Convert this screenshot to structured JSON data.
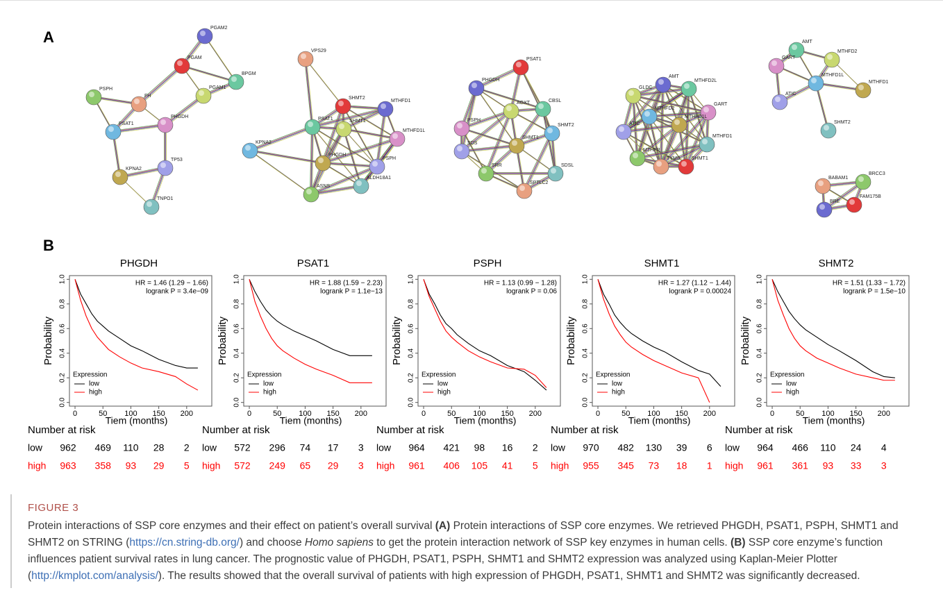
{
  "panel_a": {
    "label": "A",
    "networks": [
      {
        "nodes": [
          "PSPH",
          "FH",
          "PGAM",
          "PGAM2",
          "BPGM",
          "PGAM1",
          "PHGDH",
          "PSAT1",
          "KPNA2",
          "TP53",
          "TNPO1"
        ]
      },
      {
        "nodes": [
          "VPS29",
          "SHMT2",
          "MTHFD1",
          "PSAT1",
          "SHMT1",
          "MTHFD1L",
          "KPNA2",
          "PHGDH",
          "PSPH",
          "ALDH18A1",
          "ASNS"
        ]
      },
      {
        "nodes": [
          "PSAT1",
          "PHGDH",
          "CBSL",
          "AGXT",
          "PSPH",
          "SHMT2",
          "SHMT1",
          "SDS",
          "SDSL",
          "SRR",
          "SPTLC2"
        ]
      },
      {
        "nodes": [
          "AMT",
          "MTHFD2L",
          "GLDC",
          "GART",
          "MTHFD2",
          "MTHFD1L",
          "ATIC",
          "MTHFD1",
          "MTHFR",
          "TYMS",
          "SHMT1"
        ]
      },
      {
        "nodes": [
          "AMT",
          "MTHFD2",
          "GART",
          "MTHFD1L",
          "MTHFD1",
          "ATIC",
          "SHMT2",
          "BRCC3",
          "BABAM1",
          "FAM175B",
          "BRE"
        ]
      }
    ]
  },
  "panel_b_label": "B",
  "chart_data": [
    {
      "type": "line",
      "title": "PHGDH",
      "hr": "HR = 1.46 (1.29 − 1.66)",
      "logrank": "logrank P = 3.4e−09",
      "xlabel": "Tiem (months)",
      "ylabel": "Probability",
      "legend_title": "Expression",
      "x": [
        0,
        10,
        20,
        30,
        40,
        50,
        60,
        80,
        100,
        120,
        150,
        180,
        200,
        220
      ],
      "xlim": [
        -10,
        245
      ],
      "ylim": [
        -0.03,
        1.03
      ],
      "xticks": [
        0,
        50,
        100,
        150,
        200
      ],
      "yticks": [
        {
          "value": 0,
          "label": "0.0"
        },
        {
          "value": 0.2,
          "label": "0.2"
        },
        {
          "value": 0.4,
          "label": "0.4"
        },
        {
          "value": 0.6,
          "label": "0.6"
        },
        {
          "value": 0.8,
          "label": "0.8"
        },
        {
          "value": 1,
          "label": "1.0"
        }
      ],
      "series": [
        {
          "name": "low",
          "color": "#000000",
          "values": [
            1,
            0.88,
            0.8,
            0.72,
            0.66,
            0.62,
            0.58,
            0.52,
            0.46,
            0.42,
            0.35,
            0.3,
            0.28,
            0.28
          ]
        },
        {
          "name": "high",
          "color": "#ff0000",
          "values": [
            1,
            0.83,
            0.7,
            0.6,
            0.53,
            0.48,
            0.43,
            0.37,
            0.32,
            0.28,
            0.25,
            0.21,
            0.15,
            0.1
          ]
        }
      ],
      "risk": {
        "title": "Number at risk",
        "rows": [
          {
            "name": "low",
            "values": [
              962,
              469,
              110,
              28,
              2
            ]
          },
          {
            "name": "high",
            "values": [
              963,
              358,
              93,
              29,
              5
            ]
          }
        ]
      }
    },
    {
      "type": "line",
      "title": "PSAT1",
      "hr": "HR = 1.88 (1.59 − 2.23)",
      "logrank": "logrank P = 1.1e−13",
      "xlabel": "Tiem (months)",
      "ylabel": "Probability",
      "legend_title": "Expression",
      "x": [
        0,
        10,
        20,
        30,
        40,
        50,
        60,
        80,
        100,
        120,
        150,
        180,
        200,
        220
      ],
      "xlim": [
        -10,
        245
      ],
      "ylim": [
        -0.03,
        1.03
      ],
      "xticks": [
        0,
        50,
        100,
        150,
        200
      ],
      "yticks": [
        {
          "value": 0,
          "label": "0.0"
        },
        {
          "value": 0.2,
          "label": "0.2"
        },
        {
          "value": 0.4,
          "label": "0.4"
        },
        {
          "value": 0.6,
          "label": "0.6"
        },
        {
          "value": 0.8,
          "label": "0.8"
        },
        {
          "value": 1,
          "label": "1.0"
        }
      ],
      "series": [
        {
          "name": "low",
          "color": "#000000",
          "values": [
            1,
            0.9,
            0.82,
            0.75,
            0.7,
            0.66,
            0.63,
            0.58,
            0.54,
            0.5,
            0.43,
            0.38,
            0.38,
            0.38
          ]
        },
        {
          "name": "high",
          "color": "#ff0000",
          "values": [
            1,
            0.82,
            0.7,
            0.6,
            0.52,
            0.46,
            0.42,
            0.36,
            0.31,
            0.27,
            0.22,
            0.16,
            0.16,
            0.16
          ]
        }
      ],
      "risk": {
        "title": "Number at risk",
        "rows": [
          {
            "name": "low",
            "values": [
              572,
              296,
              74,
              17,
              3
            ]
          },
          {
            "name": "high",
            "values": [
              572,
              249,
              65,
              29,
              3
            ]
          }
        ]
      }
    },
    {
      "type": "line",
      "title": "PSPH",
      "hr": "HR = 1.13 (0.99 − 1.28)",
      "logrank": "logrank P = 0.06",
      "xlabel": "Tiem (months)",
      "ylabel": "Probability",
      "legend_title": "Expression",
      "x": [
        0,
        10,
        20,
        30,
        40,
        50,
        60,
        80,
        100,
        120,
        150,
        180,
        200,
        220
      ],
      "xlim": [
        -10,
        245
      ],
      "ylim": [
        -0.03,
        1.03
      ],
      "xticks": [
        0,
        50,
        100,
        150,
        200
      ],
      "yticks": [
        {
          "value": 0,
          "label": "0.0"
        },
        {
          "value": 0.2,
          "label": "0.2"
        },
        {
          "value": 0.4,
          "label": "0.4"
        },
        {
          "value": 0.6,
          "label": "0.6"
        },
        {
          "value": 0.8,
          "label": "0.8"
        },
        {
          "value": 1,
          "label": "1.0"
        }
      ],
      "series": [
        {
          "name": "low",
          "color": "#000000",
          "values": [
            1,
            0.88,
            0.8,
            0.71,
            0.64,
            0.6,
            0.55,
            0.48,
            0.42,
            0.38,
            0.3,
            0.25,
            0.18,
            0.1
          ]
        },
        {
          "name": "high",
          "color": "#ff0000",
          "values": [
            1,
            0.86,
            0.76,
            0.66,
            0.58,
            0.53,
            0.49,
            0.42,
            0.37,
            0.33,
            0.28,
            0.27,
            0.22,
            0.12
          ]
        }
      ],
      "risk": {
        "title": "Number at risk",
        "rows": [
          {
            "name": "low",
            "values": [
              964,
              421,
              98,
              16,
              2
            ]
          },
          {
            "name": "high",
            "values": [
              961,
              406,
              105,
              41,
              5
            ]
          }
        ]
      }
    },
    {
      "type": "line",
      "title": "SHMT1",
      "hr": "HR = 1.27 (1.12 − 1.44)",
      "logrank": "logrank P = 0.00024",
      "xlabel": "Tiem (months)",
      "ylabel": "Probability",
      "legend_title": "Expression",
      "x": [
        0,
        10,
        20,
        30,
        40,
        50,
        60,
        80,
        100,
        120,
        150,
        180,
        200,
        220
      ],
      "xlim": [
        -10,
        245
      ],
      "ylim": [
        -0.03,
        1.03
      ],
      "xticks": [
        0,
        50,
        100,
        150,
        200
      ],
      "yticks": [
        {
          "value": 0,
          "label": "0.0"
        },
        {
          "value": 0.2,
          "label": "0.2"
        },
        {
          "value": 0.4,
          "label": "0.4"
        },
        {
          "value": 0.6,
          "label": "0.6"
        },
        {
          "value": 0.8,
          "label": "0.8"
        },
        {
          "value": 1,
          "label": "1.0"
        }
      ],
      "series": [
        {
          "name": "low",
          "color": "#000000",
          "values": [
            1,
            0.88,
            0.8,
            0.71,
            0.65,
            0.6,
            0.56,
            0.5,
            0.45,
            0.41,
            0.33,
            0.26,
            0.23,
            0.13
          ]
        },
        {
          "name": "high",
          "color": "#ff0000",
          "values": [
            1,
            0.84,
            0.72,
            0.62,
            0.55,
            0.49,
            0.45,
            0.39,
            0.34,
            0.3,
            0.24,
            0.2,
            0,
            null
          ]
        }
      ],
      "risk": {
        "title": "Number at risk",
        "rows": [
          {
            "name": "low",
            "values": [
              970,
              482,
              130,
              39,
              6
            ]
          },
          {
            "name": "high",
            "values": [
              955,
              345,
              73,
              18,
              1
            ]
          }
        ]
      }
    },
    {
      "type": "line",
      "title": "SHMT2",
      "hr": "HR = 1.51 (1.33 − 1.72)",
      "logrank": "logrank P = 1.5e−10",
      "xlabel": "Tiem (months)",
      "ylabel": "Probability",
      "legend_title": "Expression",
      "x": [
        0,
        10,
        20,
        30,
        40,
        50,
        60,
        80,
        100,
        120,
        150,
        180,
        200,
        220
      ],
      "xlim": [
        -10,
        245
      ],
      "ylim": [
        -0.03,
        1.03
      ],
      "xticks": [
        0,
        50,
        100,
        150,
        200
      ],
      "yticks": [
        {
          "value": 0,
          "label": "0.0"
        },
        {
          "value": 0.2,
          "label": "0.2"
        },
        {
          "value": 0.4,
          "label": "0.4"
        },
        {
          "value": 0.6,
          "label": "0.6"
        },
        {
          "value": 0.8,
          "label": "0.8"
        },
        {
          "value": 1,
          "label": "1.0"
        }
      ],
      "series": [
        {
          "name": "low",
          "color": "#000000",
          "values": [
            1,
            0.9,
            0.82,
            0.74,
            0.68,
            0.63,
            0.59,
            0.53,
            0.47,
            0.42,
            0.34,
            0.25,
            0.21,
            0.2
          ]
        },
        {
          "name": "high",
          "color": "#ff0000",
          "values": [
            1,
            0.83,
            0.71,
            0.6,
            0.52,
            0.46,
            0.42,
            0.36,
            0.32,
            0.28,
            0.23,
            0.2,
            0.18,
            0.18
          ]
        }
      ],
      "risk": {
        "title": "Number at risk",
        "rows": [
          {
            "name": "low",
            "values": [
              964,
              466,
              110,
              24,
              4
            ]
          },
          {
            "name": "high",
            "values": [
              961,
              361,
              93,
              33,
              3
            ]
          }
        ]
      }
    }
  ],
  "caption": {
    "label": "FIGURE 3",
    "segments": [
      {
        "text": "Protein interactions of SSP core enzymes and their effect on patient’s overall survival "
      },
      {
        "text": "(A)",
        "style": "bold"
      },
      {
        "text": " Protein interactions of SSP core enzymes. We retrieved PHGDH, PSAT1, PSPH, SHMT1 and SHMT2 on STRING ("
      },
      {
        "text": "https://cn.string-db.org/",
        "style": "link"
      },
      {
        "text": ") and choose "
      },
      {
        "text": "Homo sapiens",
        "style": "italic"
      },
      {
        "text": " to get the protein interaction network of SSP key enzymes in human cells. "
      },
      {
        "text": "(B)",
        "style": "bold"
      },
      {
        "text": " SSP core enzyme’s function influences patient survival rates in lung cancer. The prognostic value of PHGDH, PSAT1, PSPH, SHMT1 and SHMT2 expression was analyzed using Kaplan-Meier Plotter ("
      },
      {
        "text": "http://kmplot.com/analysis/",
        "style": "link"
      },
      {
        "text": "). The results showed that the overall survival of patients with high expression of PHGDH, PSAT1, SHMT1 and SHMT2 was significantly decreased."
      }
    ]
  }
}
